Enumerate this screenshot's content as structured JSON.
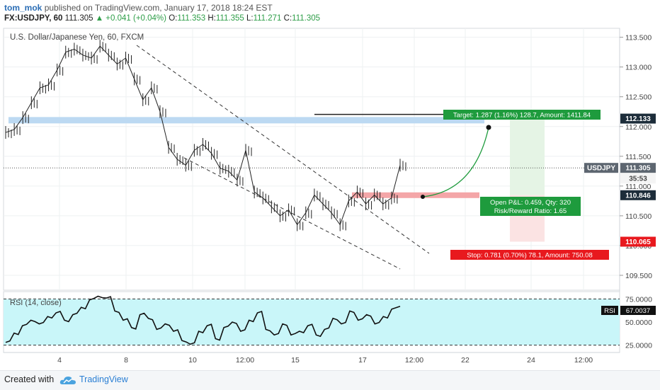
{
  "header": {
    "user": "tom_mok",
    "published_text": "published on TradingView.com, January 17, 2018 18:24 EST",
    "symbol": "FX:USDJPY, 60",
    "last": "111.305",
    "change": "▲ +0.041 (+0.04%)",
    "o_label": "O:",
    "o": "111.353",
    "h_label": "H:",
    "h": "111.355",
    "l_label": "L:",
    "l": "111.271",
    "c_label": "C:",
    "c": "111.305"
  },
  "footer": {
    "created_with": "Created with",
    "brand": "TradingView"
  },
  "chart_data": [
    {
      "type": "line",
      "title": "U.S. Dollar/Japanese Yen, 60, FXCM",
      "x_tick_labels": [
        "4",
        "8",
        "10",
        "12:00",
        "15",
        "17",
        "12:00",
        "22",
        "24",
        "12:00"
      ],
      "y_ticks": [
        109.5,
        110.0,
        110.5,
        111.0,
        111.5,
        112.0,
        112.5,
        113.0,
        113.5
      ],
      "y_tick_labels": [
        "109.500",
        "110.000",
        "110.500",
        "111.000",
        "111.500",
        "112.000",
        "112.500",
        "113.000",
        "113.500"
      ],
      "ylim": [
        109.25,
        113.65
      ],
      "series": [
        {
          "values": [
            111.9,
            111.95,
            112.15,
            112.4,
            112.65,
            112.7,
            112.95,
            113.25,
            113.3,
            113.2,
            113.15,
            113.35,
            113.2,
            113.05,
            113.15,
            112.8,
            112.45,
            112.65,
            112.25,
            111.65,
            111.45,
            111.35,
            111.6,
            111.7,
            111.55,
            111.3,
            111.25,
            111.1,
            111.6,
            110.9,
            110.8,
            110.65,
            110.5,
            110.6,
            110.35,
            110.55,
            110.85,
            110.7,
            110.55,
            110.35,
            110.75,
            110.9,
            110.7,
            110.85,
            110.7,
            110.8,
            111.35
          ]
        }
      ],
      "badges": {
        "last_price_label": "USDJPY",
        "last_price": "111.305",
        "countdown": "35:53",
        "target_price": "112.133",
        "entry_price": "110.846",
        "stop_price": "110.065"
      },
      "position": {
        "target_label": "Target: 1.287 (1.16%) 128.7, Amount: 1411.84",
        "open_label": "Open P&L: 0.459, Qty: 320",
        "ratio_label": "Risk/Reward Ratio: 1.65",
        "stop_label": "Stop: 0.781 (0.70%) 78.1, Amount: 750.08",
        "entry": 110.846,
        "target": 112.133,
        "stop": 110.065
      },
      "zone_price": 112.1,
      "colors": {
        "target": "#1e9b3d",
        "stop": "#e8191e",
        "zone": "#bcd9f2",
        "price_badge": "#5d6670"
      }
    },
    {
      "type": "line",
      "title": "RSI (14, close)",
      "y_ticks": [
        25,
        50,
        75
      ],
      "y_tick_labels": [
        "25.0000",
        "50.0000",
        "75.0000"
      ],
      "ylim": [
        17,
        83
      ],
      "series": [
        {
          "values": [
            28,
            38,
            46,
            52,
            48,
            56,
            60,
            52,
            58,
            66,
            74,
            78,
            76,
            62,
            52,
            44,
            58,
            54,
            42,
            48,
            40,
            30,
            26,
            40,
            46,
            32,
            44,
            50,
            40,
            52,
            60,
            42,
            36,
            48,
            36,
            40,
            46,
            36,
            42,
            54,
            48,
            62,
            52,
            58,
            48,
            56,
            64,
            67
          ]
        }
      ],
      "badges": {
        "label": "RSI",
        "value": "67.0037"
      },
      "colors": {
        "band_fill": "#c9f6f9",
        "line": "#111111"
      }
    }
  ]
}
